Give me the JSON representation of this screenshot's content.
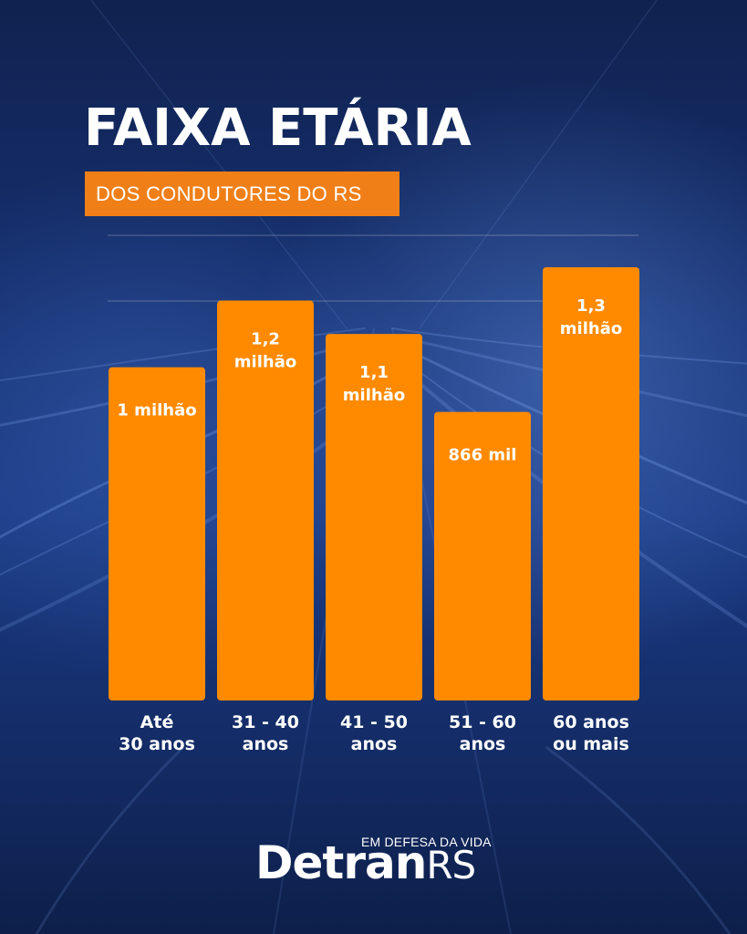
{
  "header": {
    "title": "FAIXA ETÁRIA",
    "subtitle": "DOS CONDUTORES DO RS"
  },
  "colors": {
    "bar": "#ff8a00",
    "accent": "#f07f18",
    "background": "#163173"
  },
  "chart_data": {
    "type": "bar",
    "title": "FAIXA ETÁRIA",
    "subtitle": "DOS CONDUTORES DO RS",
    "categories": [
      "Até 30 anos",
      "31 - 40 anos",
      "41 - 50 anos",
      "51 - 60 anos",
      "60 anos ou mais"
    ],
    "category_lines": [
      [
        "Até",
        "30 anos"
      ],
      [
        "31 - 40",
        "anos"
      ],
      [
        "41 - 50",
        "anos"
      ],
      [
        "51 - 60",
        "anos"
      ],
      [
        "60 anos",
        "ou mais"
      ]
    ],
    "values": [
      1000000,
      1200000,
      1100000,
      866000,
      1300000
    ],
    "value_labels": [
      [
        "1 milhão"
      ],
      [
        "1,2",
        "milhão"
      ],
      [
        "1,1",
        "milhão"
      ],
      [
        "866 mil"
      ],
      [
        "1,3",
        "milhão"
      ]
    ],
    "xlabel": "",
    "ylabel": "",
    "ylim": [
      0,
      1300000
    ],
    "grid": true,
    "legend": "none"
  },
  "brand": {
    "tagline": "EM DEFESA DA VIDA",
    "name": "Detran",
    "suffix": "RS"
  }
}
